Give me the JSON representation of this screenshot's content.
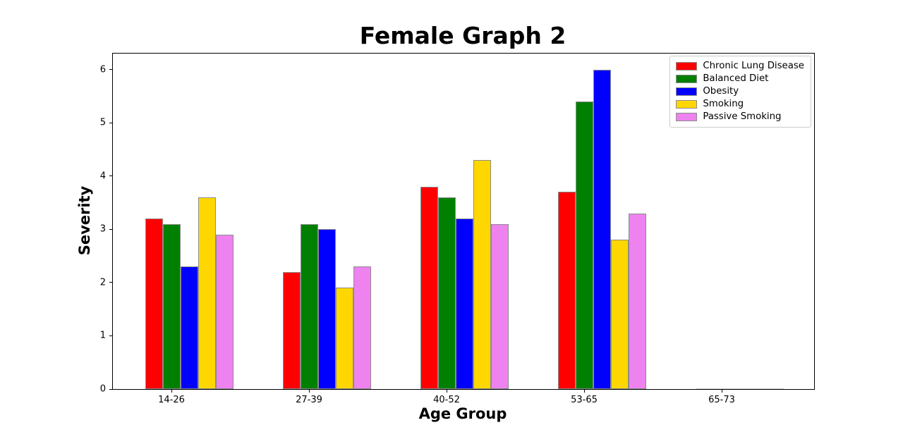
{
  "chart_data": {
    "type": "bar",
    "title": "Female Graph 2",
    "xlabel": "Age Group",
    "ylabel": "Severity",
    "categories": [
      "14-26",
      "27-39",
      "40-52",
      "53-65",
      "65-73"
    ],
    "series": [
      {
        "name": "Chronic Lung Disease",
        "color": "#ff0000",
        "values": [
          3.2,
          2.2,
          3.8,
          3.7,
          0
        ]
      },
      {
        "name": "Balanced Diet",
        "color": "#008000",
        "values": [
          3.1,
          3.1,
          3.6,
          5.4,
          0
        ]
      },
      {
        "name": "Obesity",
        "color": "#0000ff",
        "values": [
          2.3,
          3.0,
          3.2,
          6.0,
          0
        ]
      },
      {
        "name": "Smoking",
        "color": "#ffd700",
        "values": [
          3.6,
          1.9,
          4.3,
          2.8,
          0
        ]
      },
      {
        "name": "Passive Smoking",
        "color": "#ee82ee",
        "values": [
          2.9,
          2.3,
          3.1,
          3.3,
          0
        ]
      }
    ],
    "yticks": [
      0,
      1,
      2,
      3,
      4,
      5,
      6
    ],
    "ylim": [
      0,
      6.3
    ],
    "grid": false,
    "legend_position": "upper right",
    "bar_edge_color": "#8c8c8c"
  }
}
